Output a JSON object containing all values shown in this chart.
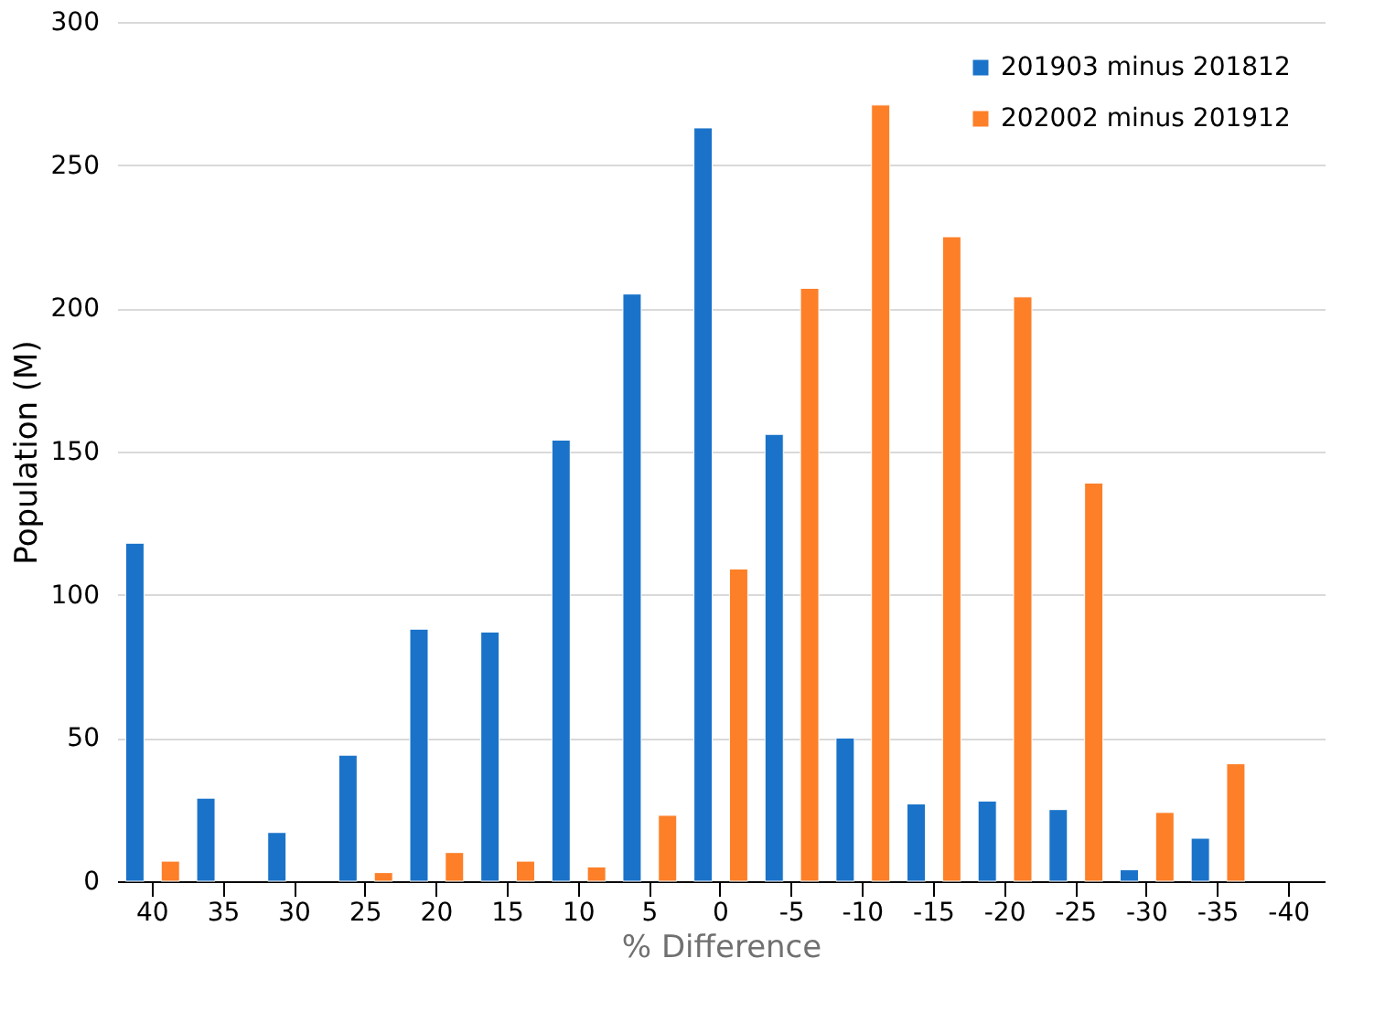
{
  "chart_data": {
    "type": "bar",
    "xlabel": "% Difference",
    "ylabel": "Population (M)",
    "categories": [
      "40",
      "35",
      "30",
      "25",
      "20",
      "15",
      "10",
      "5",
      "0",
      "-5",
      "-10",
      "-15",
      "-20",
      "-25",
      "-30",
      "-35",
      "-40"
    ],
    "series": [
      {
        "name": "201903 minus 201812",
        "color": "#1a73c9",
        "values": [
          118,
          29,
          17,
          44,
          88,
          87,
          154,
          205,
          263,
          156,
          50,
          27,
          28,
          25,
          4,
          15,
          null
        ]
      },
      {
        "name": "202002 minus 201912",
        "color": "#fd7f28",
        "values": [
          7,
          null,
          null,
          3,
          10,
          7,
          5,
          23,
          109,
          207,
          271,
          225,
          204,
          139,
          24,
          41,
          null
        ]
      }
    ],
    "ylim": [
      0,
      300
    ],
    "yticks": [
      0,
      50,
      100,
      150,
      200,
      250,
      300
    ],
    "grid": "y",
    "legend": "top right"
  }
}
